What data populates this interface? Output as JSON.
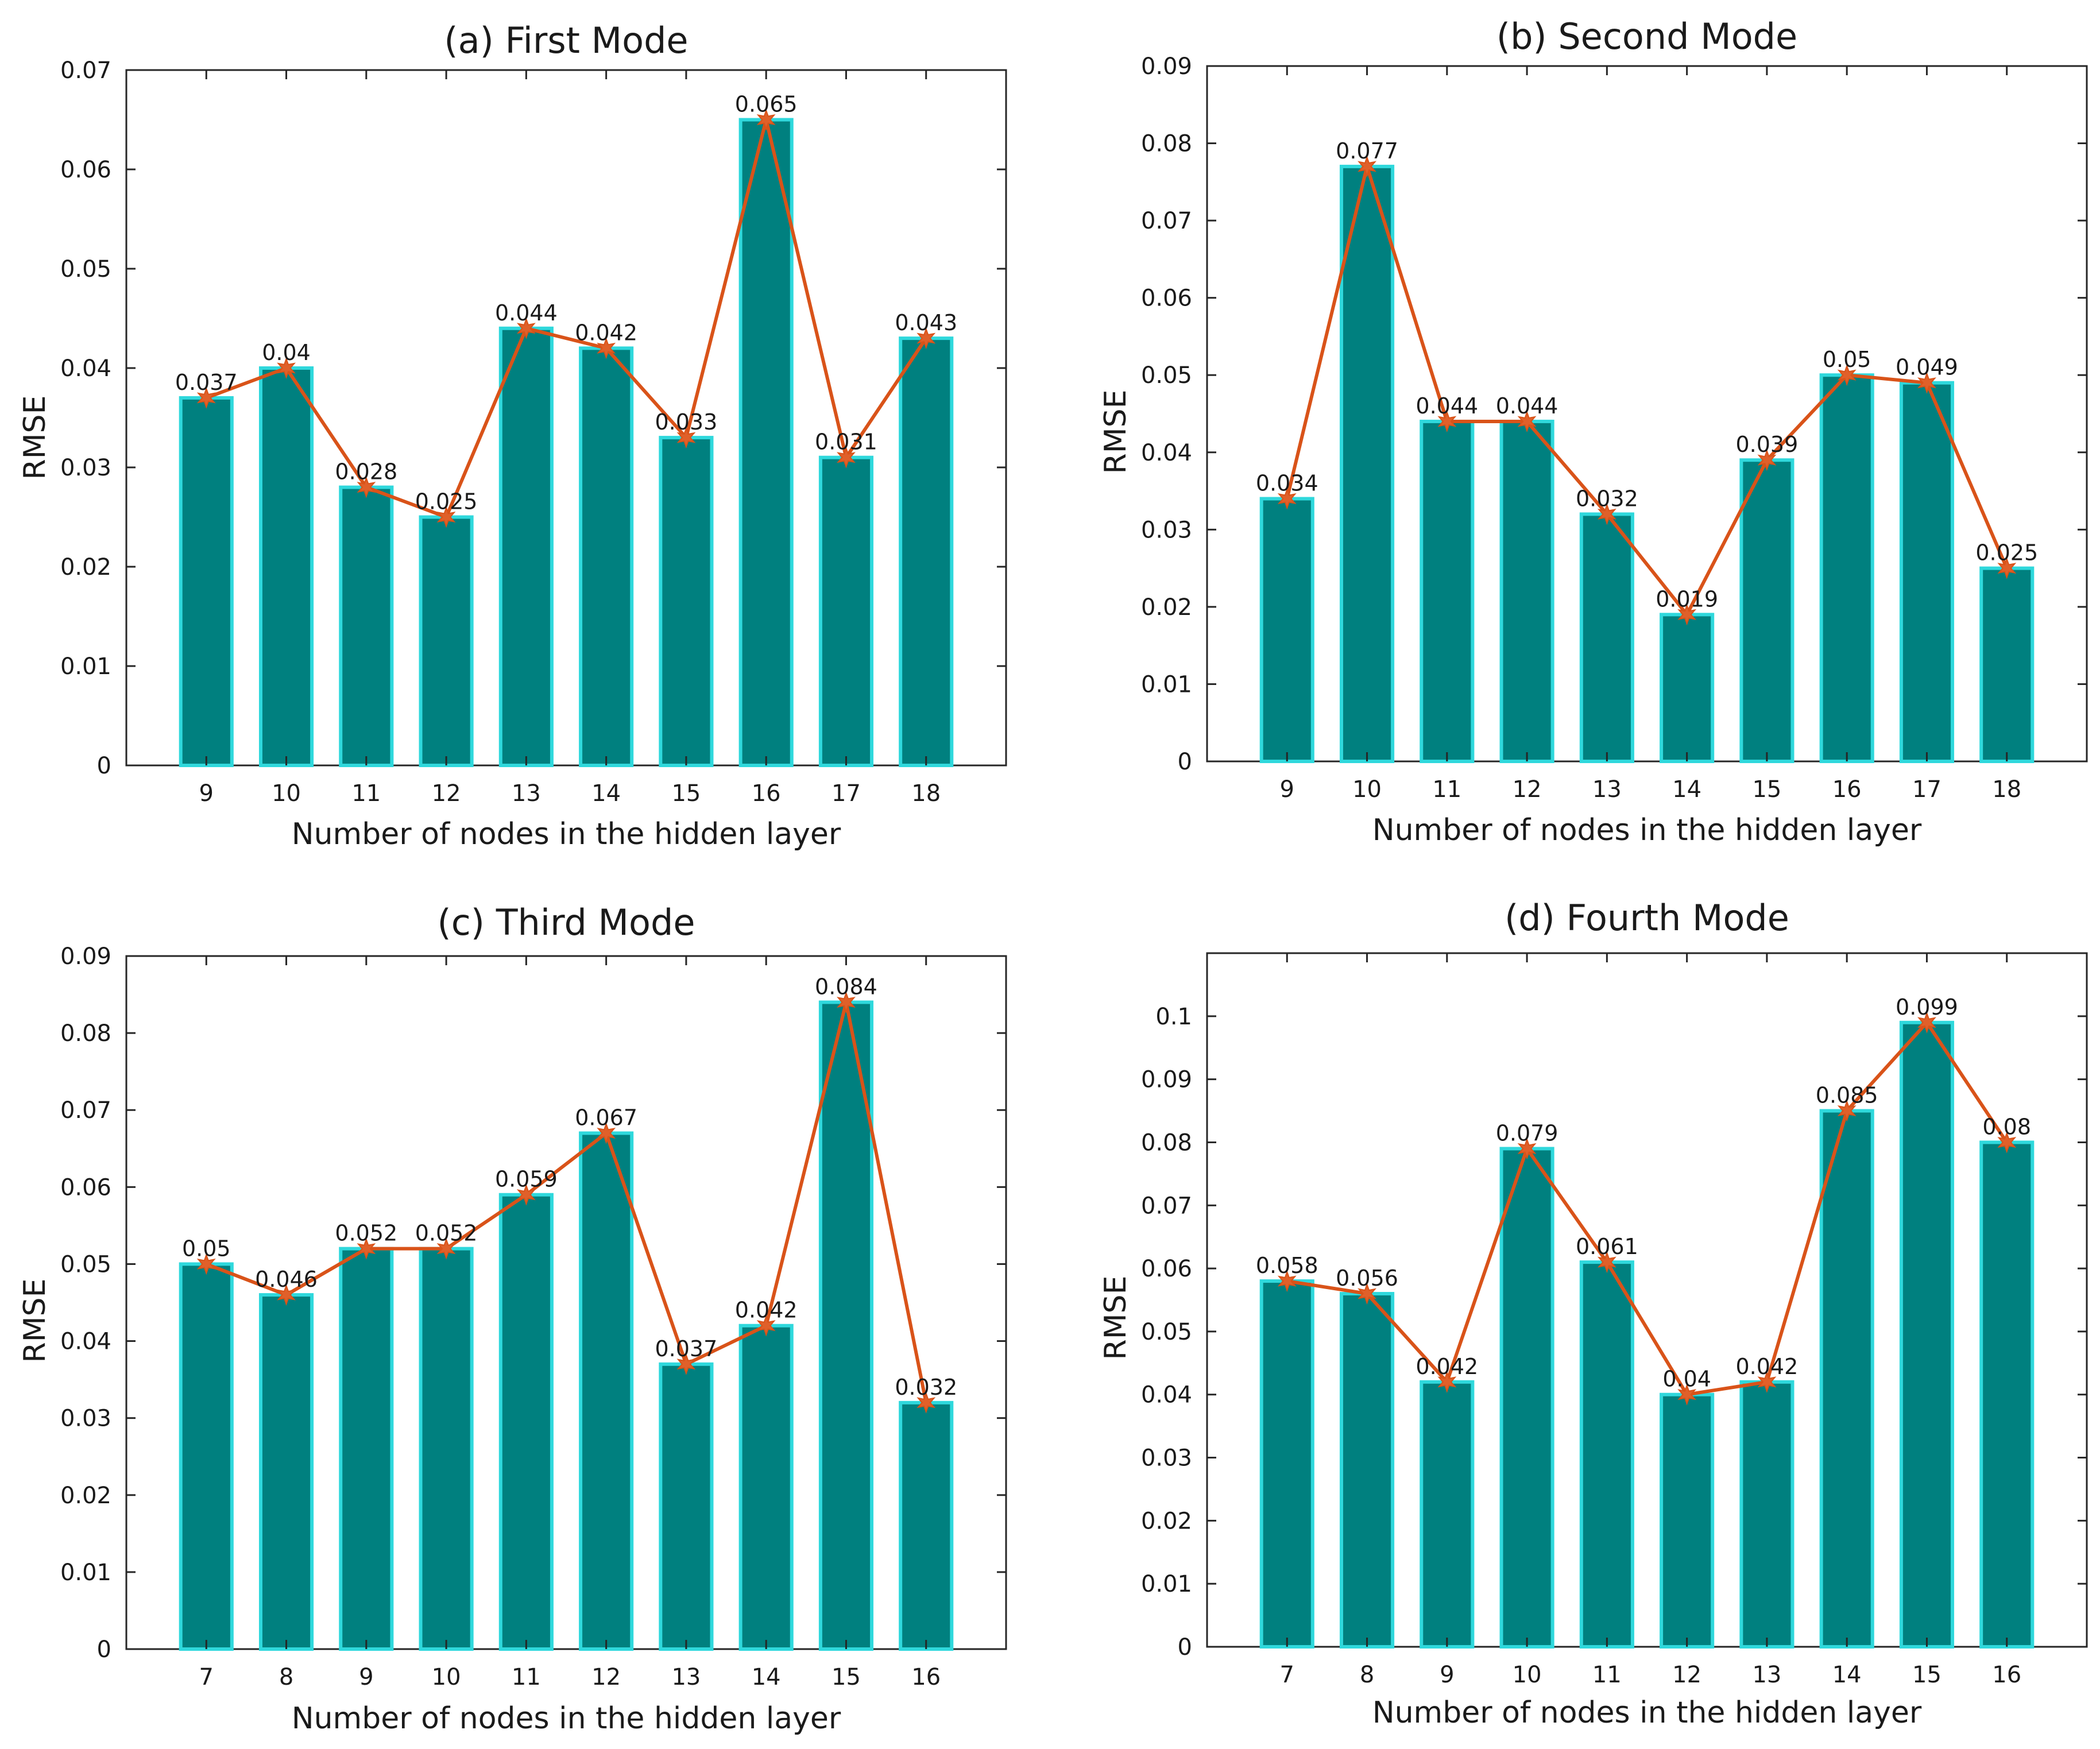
{
  "chart_data": [
    {
      "type": "bar",
      "title": "(a) First Mode",
      "xlabel": "Number of nodes in the hidden layer",
      "ylabel": "RMSE",
      "categories": [
        "9",
        "10",
        "11",
        "12",
        "13",
        "14",
        "15",
        "16",
        "17",
        "18"
      ],
      "values": [
        0.037,
        0.04,
        0.028,
        0.025,
        0.044,
        0.042,
        0.033,
        0.065,
        0.031,
        0.043
      ],
      "data_labels": [
        "0.037",
        "0.04",
        "0.028",
        "0.025",
        "0.044",
        "0.042",
        "0.033",
        "0.065",
        "0.031",
        "0.043"
      ],
      "ylim": [
        0,
        0.07
      ],
      "yticks": [
        0,
        0.01,
        0.02,
        0.03,
        0.04,
        0.05,
        0.06,
        0.07
      ],
      "ytick_labels": [
        "0",
        "0.01",
        "0.02",
        "0.03",
        "0.04",
        "0.05",
        "0.06",
        "0.07"
      ],
      "overlay_line": true,
      "grid": false
    },
    {
      "type": "bar",
      "title": "(b) Second Mode",
      "xlabel": "Number of nodes in the hidden layer",
      "ylabel": "RMSE",
      "categories": [
        "9",
        "10",
        "11",
        "12",
        "13",
        "14",
        "15",
        "16",
        "17",
        "18"
      ],
      "values": [
        0.034,
        0.077,
        0.044,
        0.044,
        0.032,
        0.019,
        0.039,
        0.05,
        0.049,
        0.025
      ],
      "data_labels": [
        "0.034",
        "0.077",
        "0.044",
        "0.044",
        "0.032",
        "0.019",
        "0.039",
        "0.05",
        "0.049",
        "0.025"
      ],
      "ylim": [
        0,
        0.09
      ],
      "yticks": [
        0,
        0.01,
        0.02,
        0.03,
        0.04,
        0.05,
        0.06,
        0.07,
        0.08,
        0.09
      ],
      "ytick_labels": [
        "0",
        "0.01",
        "0.02",
        "0.03",
        "0.04",
        "0.05",
        "0.06",
        "0.07",
        "0.08",
        "0.09"
      ],
      "overlay_line": true,
      "grid": false
    },
    {
      "type": "bar",
      "title": "(c) Third Mode",
      "xlabel": "Number of nodes in the hidden layer",
      "ylabel": "RMSE",
      "categories": [
        "7",
        "8",
        "9",
        "10",
        "11",
        "12",
        "13",
        "14",
        "15",
        "16"
      ],
      "values": [
        0.05,
        0.046,
        0.052,
        0.052,
        0.059,
        0.067,
        0.037,
        0.042,
        0.084,
        0.032
      ],
      "data_labels": [
        "0.05",
        "0.046",
        "0.052",
        "0.052",
        "0.059",
        "0.067",
        "0.037",
        "0.042",
        "0.084",
        "0.032"
      ],
      "ylim": [
        0,
        0.09
      ],
      "yticks": [
        0,
        0.01,
        0.02,
        0.03,
        0.04,
        0.05,
        0.06,
        0.07,
        0.08,
        0.09
      ],
      "ytick_labels": [
        "0",
        "0.01",
        "0.02",
        "0.03",
        "0.04",
        "0.05",
        "0.06",
        "0.07",
        "0.08",
        "0.09"
      ],
      "overlay_line": true,
      "grid": false
    },
    {
      "type": "bar",
      "title": "(d) Fourth Mode",
      "xlabel": "Number of nodes in the hidden layer",
      "ylabel": "RMSE",
      "categories": [
        "7",
        "8",
        "9",
        "10",
        "11",
        "12",
        "13",
        "14",
        "15",
        "16"
      ],
      "values": [
        0.058,
        0.056,
        0.042,
        0.079,
        0.061,
        0.04,
        0.042,
        0.085,
        0.099,
        0.08
      ],
      "data_labels": [
        "0.058",
        "0.056",
        "0.042",
        "0.079",
        "0.061",
        "0.04",
        "0.042",
        "0.085",
        "0.099",
        "0.08"
      ],
      "ylim": [
        0,
        0.11
      ],
      "yticks": [
        0,
        0.01,
        0.02,
        0.03,
        0.04,
        0.05,
        0.06,
        0.07,
        0.08,
        0.09,
        0.1
      ],
      "ytick_labels": [
        "0",
        "0.01",
        "0.02",
        "0.03",
        "0.04",
        "0.05",
        "0.06",
        "0.07",
        "0.08",
        "0.09",
        "0.1"
      ],
      "overlay_line": true,
      "grid": false
    }
  ],
  "colors": {
    "bar_fill": "#00807f",
    "bar_edge": "#2fd8dc",
    "line": "#d95319",
    "marker": "#e0602a",
    "axis": "#262626",
    "text": "#1a1a1a"
  }
}
